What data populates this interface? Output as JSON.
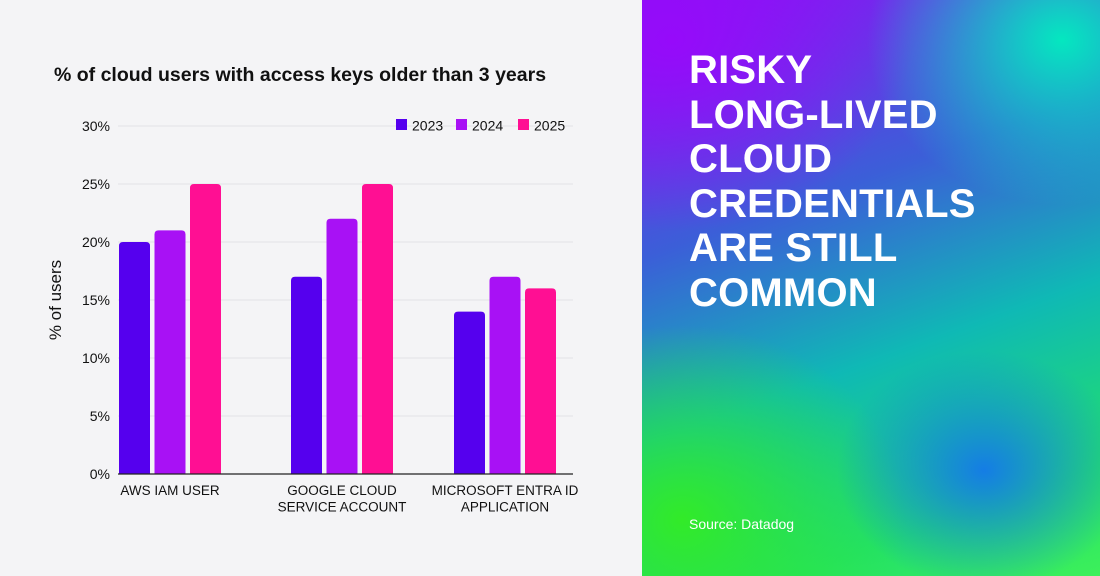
{
  "headline": {
    "lines": [
      "RISKY",
      "LONG-LIVED",
      "CLOUD",
      "CREDENTIALS",
      "ARE STILL",
      "COMMON"
    ]
  },
  "source": "Source: Datadog",
  "chart_data": {
    "type": "bar",
    "title": "% of cloud users with access keys older than 3 years",
    "xlabel": "",
    "ylabel": "% of users",
    "ylim": [
      0,
      30
    ],
    "yticks": [
      0,
      5,
      10,
      15,
      20,
      25,
      30
    ],
    "ytick_labels": [
      "0%",
      "5%",
      "10%",
      "15%",
      "20%",
      "25%",
      "30%"
    ],
    "categories": [
      [
        "AWS IAM USER"
      ],
      [
        "GOOGLE CLOUD",
        "SERVICE ACCOUNT"
      ],
      [
        "MICROSOFT ENTRA ID",
        "APPLICATION"
      ]
    ],
    "series": [
      {
        "name": "2023",
        "color": "#5500ee",
        "values": [
          20,
          17,
          14
        ]
      },
      {
        "name": "2024",
        "color": "#a811f5",
        "values": [
          21,
          22,
          17
        ]
      },
      {
        "name": "2025",
        "color": "#ff0f93",
        "values": [
          25,
          25,
          16
        ]
      }
    ],
    "legend_position": "top-right",
    "grid": true
  }
}
